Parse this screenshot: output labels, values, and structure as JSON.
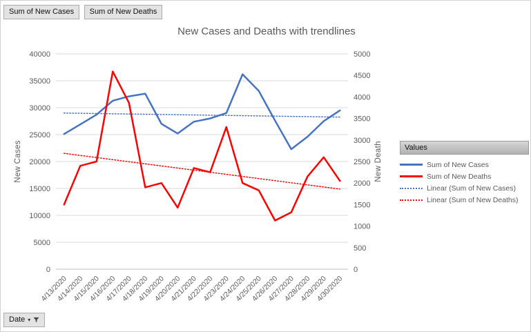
{
  "pivot": {
    "top_buttons": [
      "Sum of New Cases",
      "Sum of New Deaths"
    ],
    "axis_button": "Date"
  },
  "legend": {
    "header": "Values"
  },
  "chart_data": {
    "type": "line",
    "title": "New Cases and Deaths with trendlines",
    "categories": [
      "4/13/2020",
      "4/14/2020",
      "4/15/2020",
      "4/16/2020",
      "4/17/2020",
      "4/18/2020",
      "4/19/2020",
      "4/20/2020",
      "4/21/2020",
      "4/22/2020",
      "4/23/2020",
      "4/24/2020",
      "4/25/2020",
      "4/26/2020",
      "4/27/2020",
      "4/28/2020",
      "4/29/2020",
      "4/30/2020"
    ],
    "left_axis": {
      "title": "New Cases",
      "min": 0,
      "max": 40000,
      "step": 5000
    },
    "right_axis": {
      "title": "New Death",
      "min": 0,
      "max": 5000,
      "step": 500
    },
    "grid": true,
    "legend_position": "right",
    "series": [
      {
        "name": "Sum of New Cases",
        "axis": "left",
        "color": "#4472C4",
        "style": "solid",
        "width": 2.5,
        "values": [
          25100,
          26900,
          28700,
          31300,
          32100,
          32600,
          27000,
          25200,
          27400,
          28000,
          29000,
          36200,
          33100,
          27600,
          22300,
          24600,
          27500,
          29500
        ]
      },
      {
        "name": "Sum of New Deaths",
        "axis": "right",
        "color": "#FF0000",
        "style": "solid",
        "width": 2.5,
        "values": [
          1500,
          2400,
          2500,
          4590,
          3860,
          1900,
          2000,
          1430,
          2350,
          2250,
          3300,
          2000,
          1830,
          1130,
          1320,
          2150,
          2600,
          2050
        ]
      },
      {
        "name": "Linear (Sum of New Cases)",
        "axis": "left",
        "color": "#4472C4",
        "style": "dotted",
        "width": 1.5,
        "trend": [
          29000,
          28250
        ]
      },
      {
        "name": "Linear (Sum of New Deaths)",
        "axis": "right",
        "color": "#FF0000",
        "style": "dotted",
        "width": 1.5,
        "trend": [
          2690,
          1860
        ]
      }
    ]
  }
}
